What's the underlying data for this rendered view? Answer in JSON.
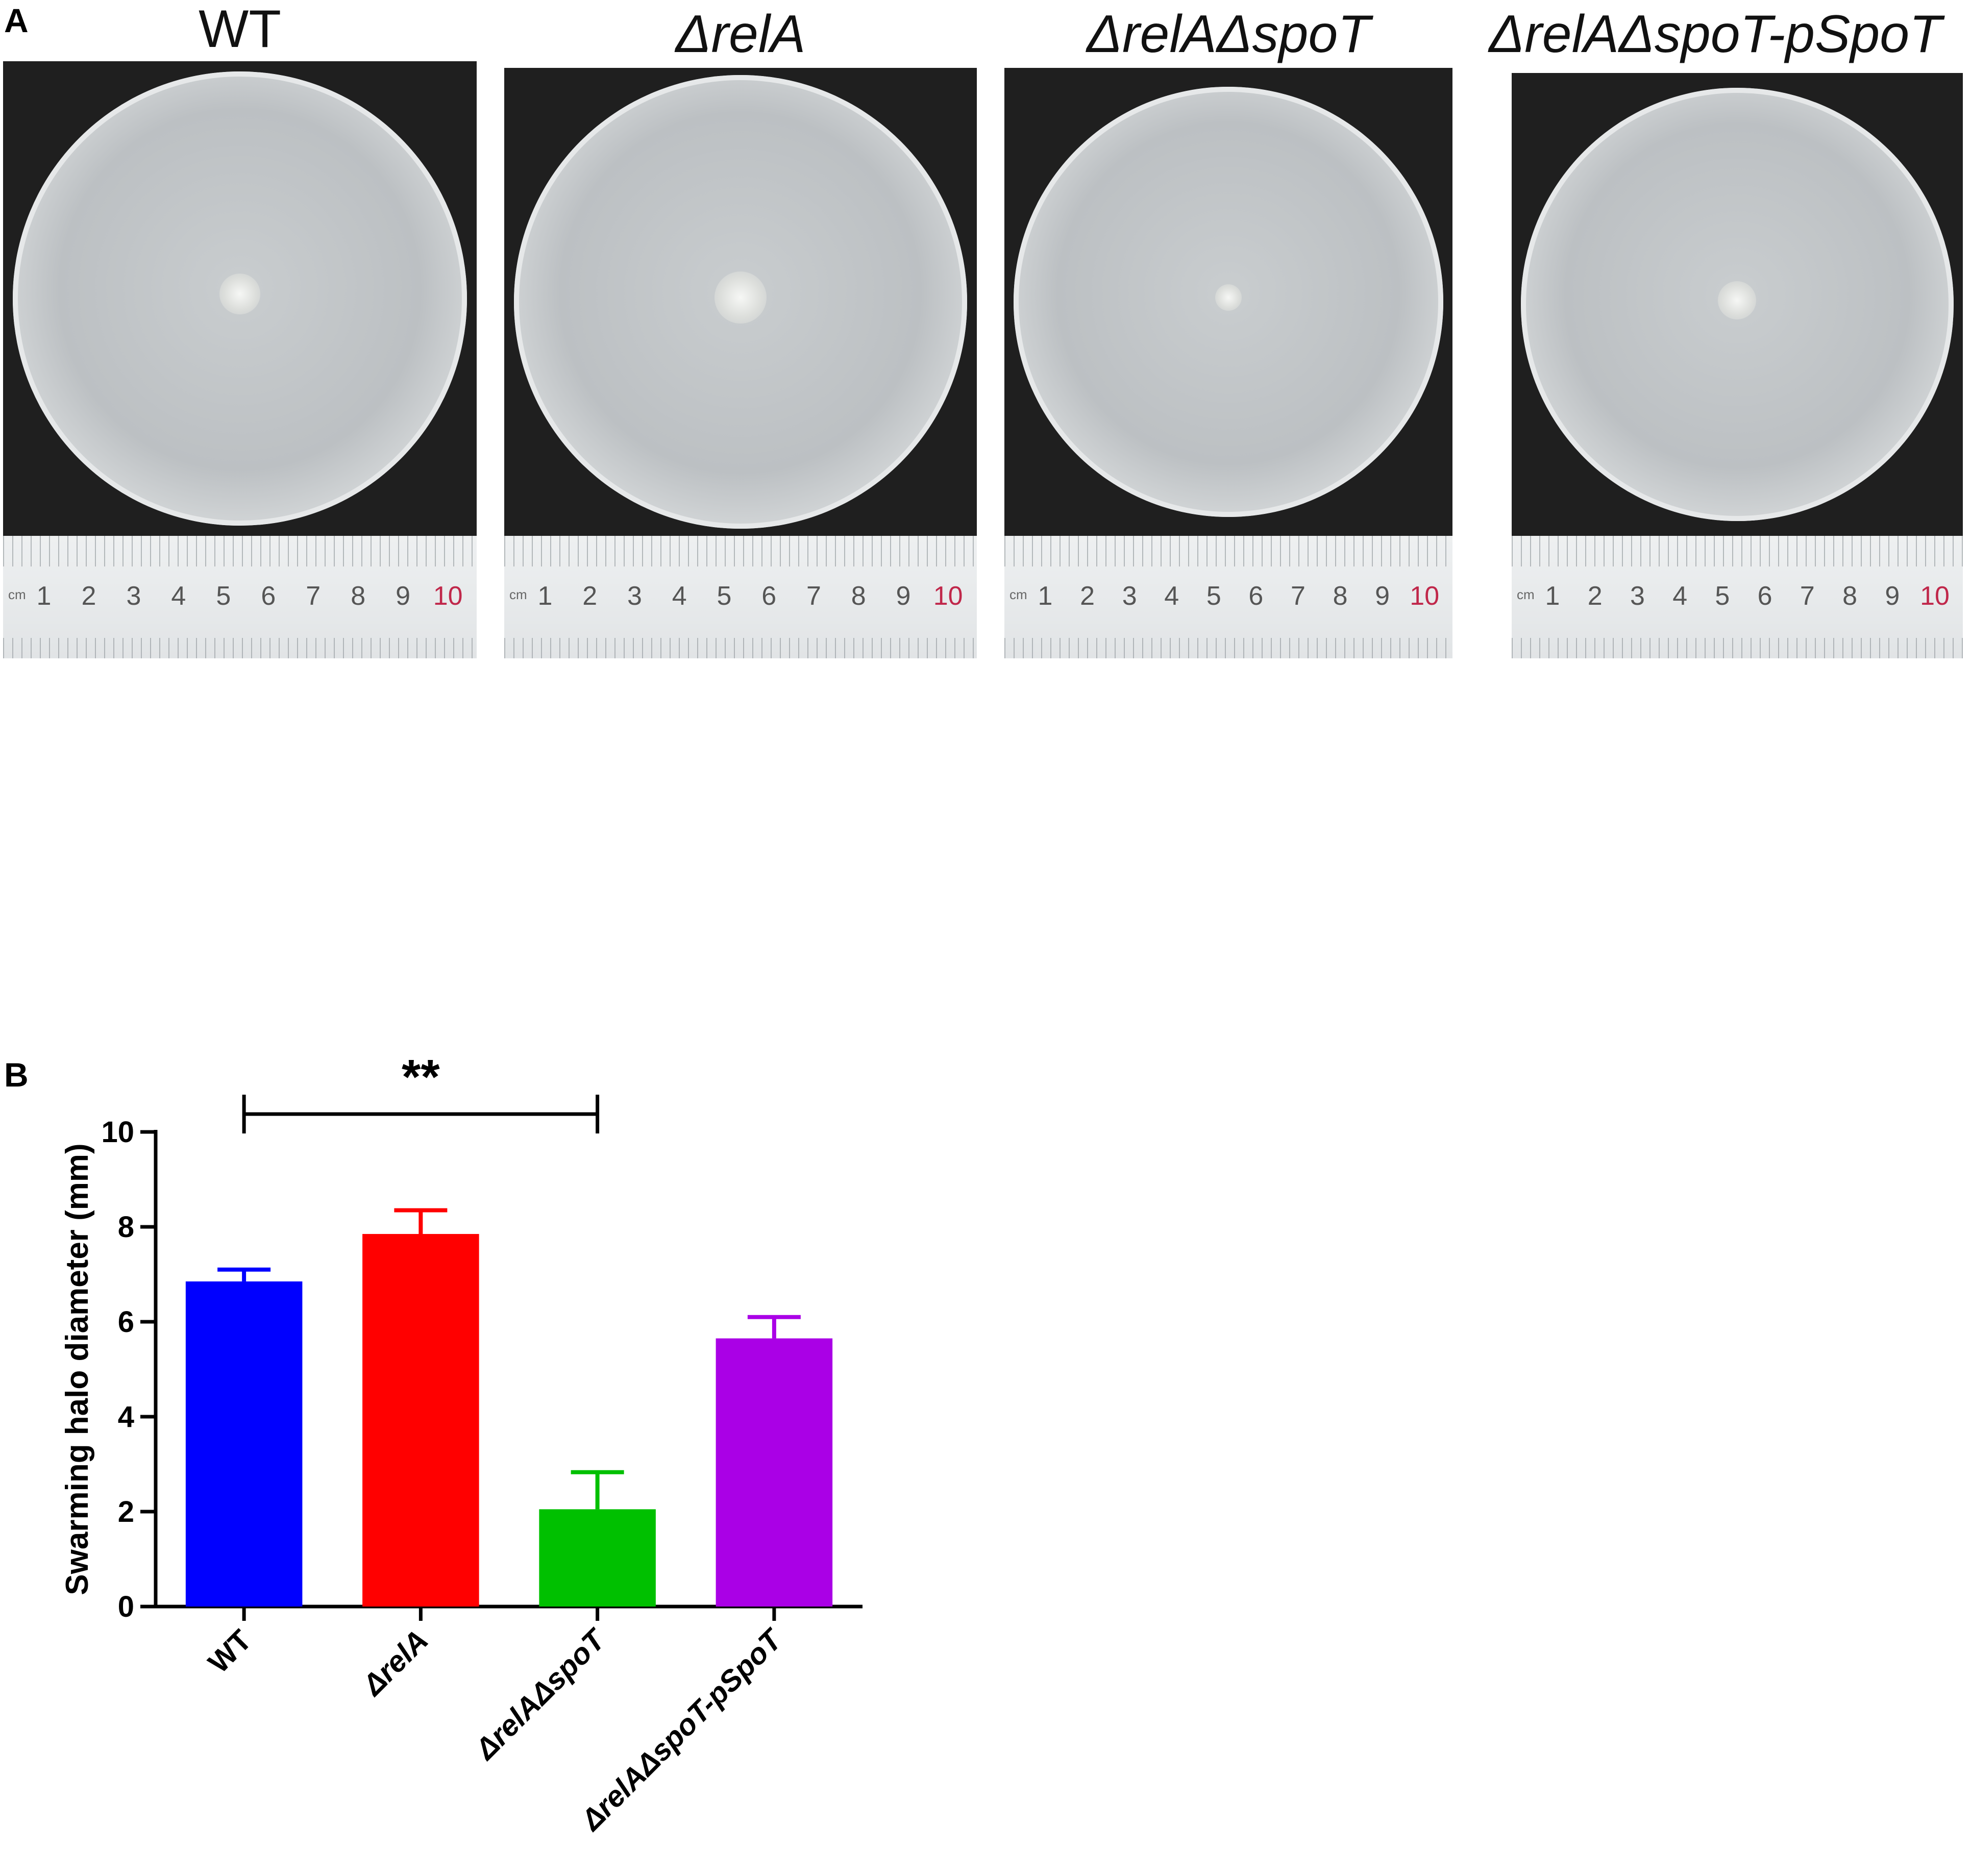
{
  "panel_a": {
    "label": "A",
    "plates": [
      {
        "title": "WT",
        "italic": false,
        "colony_size": 0.55
      },
      {
        "title": "ΔrelA",
        "italic": true,
        "colony_size": 0.8
      },
      {
        "title": "ΔrelAΔspoT",
        "italic": true,
        "colony_size": 0.25
      },
      {
        "title": "ΔrelAΔspoT-pSpoT",
        "italic": true,
        "colony_size": 0.5
      }
    ],
    "ruler": {
      "unit": "cm",
      "numbers": [
        "1",
        "2",
        "3",
        "4",
        "5",
        "6",
        "7",
        "8",
        "9",
        "10"
      ],
      "red_number": "10"
    }
  },
  "panel_b": {
    "label": "B"
  },
  "chart_data": {
    "type": "bar",
    "categories": [
      "WT",
      "ΔrelA",
      "ΔrelAΔspoT",
      "ΔrelAΔspoT-pSpoT"
    ],
    "values": [
      6.85,
      7.85,
      2.05,
      5.65
    ],
    "errors": [
      0.25,
      0.5,
      0.78,
      0.45
    ],
    "colors": [
      "#0000ff",
      "#ff0000",
      "#00c000",
      "#aa00e6"
    ],
    "ylabel": "Swarming halo diameter (mm)",
    "ylim": [
      0,
      10
    ],
    "yticks": [
      0,
      2,
      4,
      6,
      8,
      10
    ],
    "significance": {
      "from": "WT",
      "to": "ΔrelAΔspoT",
      "label": "**"
    },
    "grid": false,
    "legend": "none"
  }
}
